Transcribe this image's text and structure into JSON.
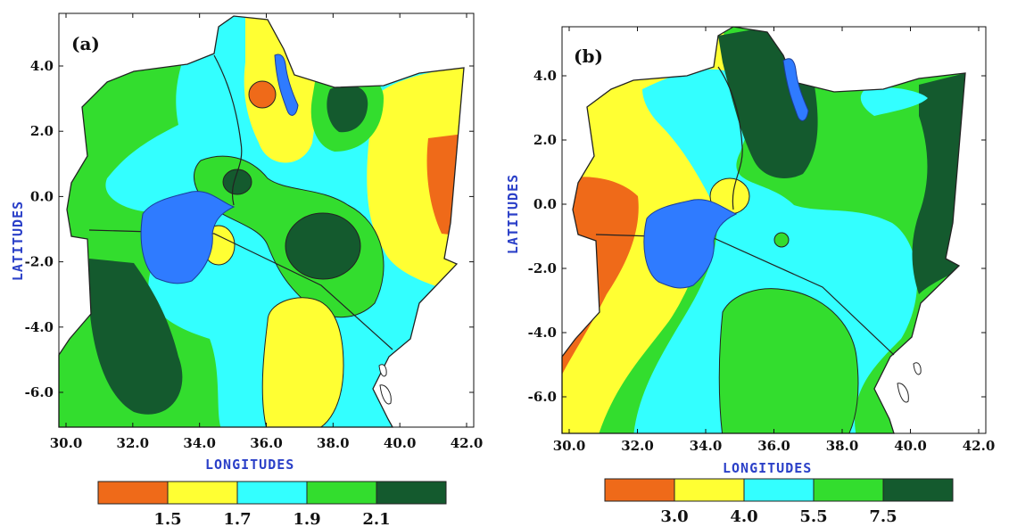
{
  "panels": [
    {
      "id": "a",
      "label": "(a)",
      "xlabel": "LONGITUDES",
      "ylabel": "LATITUDES",
      "x_ticks": [
        "30.0",
        "32.0",
        "34.0",
        "36.0",
        "38.0",
        "40.0",
        "42.0"
      ],
      "y_ticks": [
        "4.0",
        "2.0",
        "0.0",
        "-2.0",
        "-4.0",
        "-6.0"
      ],
      "colorbar": {
        "colors": [
          "#ef6a19",
          "#ffff33",
          "#33ffff",
          "#33dd2e",
          "#145a2e"
        ],
        "labels": [
          "1.5",
          "1.7",
          "1.9",
          "2.1"
        ]
      }
    },
    {
      "id": "b",
      "label": "(b)",
      "xlabel": "LONGITUDES",
      "ylabel": "LATITUDES",
      "x_ticks": [
        "30.0",
        "32.0",
        "34.0",
        "36.0",
        "38.0",
        "40.0",
        "42.0"
      ],
      "y_ticks": [
        "4.0",
        "2.0",
        "0.0",
        "-2.0",
        "-4.0",
        "-6.0"
      ],
      "colorbar": {
        "colors": [
          "#ef6a19",
          "#ffff33",
          "#33ffff",
          "#33dd2e",
          "#145a2e"
        ],
        "labels": [
          "3.0",
          "4.0",
          "5.5",
          "7.5"
        ]
      }
    }
  ],
  "colors": {
    "orange": "#ef6a19",
    "yellow": "#ffff33",
    "cyan": "#33ffff",
    "green": "#33dd2e",
    "dark_green": "#145a2e",
    "lake": "#2f7bff",
    "border": "#222222"
  }
}
